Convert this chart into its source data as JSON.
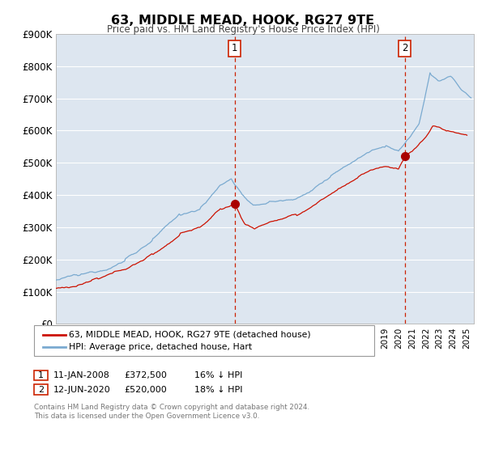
{
  "title": "63, MIDDLE MEAD, HOOK, RG27 9TE",
  "subtitle": "Price paid vs. HM Land Registry's House Price Index (HPI)",
  "background_color": "#ffffff",
  "plot_bg_color": "#dde6f0",
  "grid_color": "#ffffff",
  "hpi_color": "#7aaad0",
  "price_color": "#cc1100",
  "marker_color": "#aa0000",
  "vline_color": "#cc2200",
  "ylim": [
    0,
    900000
  ],
  "yticks": [
    0,
    100000,
    200000,
    300000,
    400000,
    500000,
    600000,
    700000,
    800000,
    900000
  ],
  "ytick_labels": [
    "£0",
    "£100K",
    "£200K",
    "£300K",
    "£400K",
    "£500K",
    "£600K",
    "£700K",
    "£800K",
    "£900K"
  ],
  "legend_label_price": "63, MIDDLE MEAD, HOOK, RG27 9TE (detached house)",
  "legend_label_hpi": "HPI: Average price, detached house, Hart",
  "annotation1": {
    "num": "1",
    "date": "11-JAN-2008",
    "price": "£372,500",
    "hpi_pct": "16% ↓ HPI",
    "x_year": 2008.04,
    "y_val": 372500
  },
  "annotation2": {
    "num": "2",
    "date": "12-JUN-2020",
    "price": "£520,000",
    "hpi_pct": "18% ↓ HPI",
    "x_year": 2020.46,
    "y_val": 520000
  },
  "footer1": "Contains HM Land Registry data © Crown copyright and database right 2024.",
  "footer2": "This data is licensed under the Open Government Licence v3.0.",
  "xmin": 1995.0,
  "xmax": 2025.5
}
